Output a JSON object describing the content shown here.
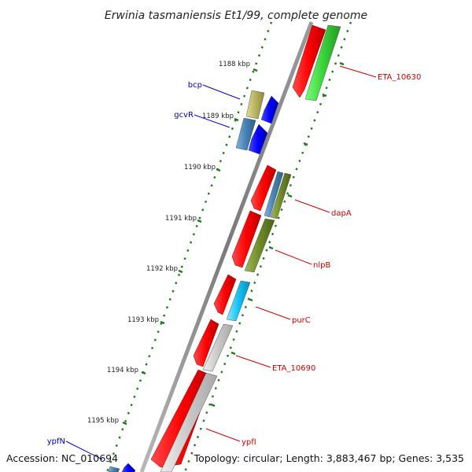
{
  "title": "Erwinia tasmaniensis Et1/99, complete genome",
  "accession": "Accession: NC_010694",
  "topology": "Topology: circular; Length: 3,883,467 bp; Genes: 3,535",
  "colors": {
    "backbone": "#8a8a8a",
    "forward_gene": "#ff0000",
    "reverse_gene": "#0000ff",
    "ticks": "#1f7a1f",
    "label_red": "#cc0000",
    "label_blue": "#0000aa"
  },
  "scale_marks": [
    "1188 kbp",
    "1189 kbp",
    "1190 kbp",
    "1191 kbp",
    "1192 kbp",
    "1193 kbp",
    "1194 kbp",
    "1195 kbp"
  ],
  "gene_labels": [
    "bcp",
    "gcvR",
    "ETA_10630",
    "dapA",
    "nlpB",
    "purC",
    "ETA_10690",
    "ypfI",
    "ypfN"
  ]
}
